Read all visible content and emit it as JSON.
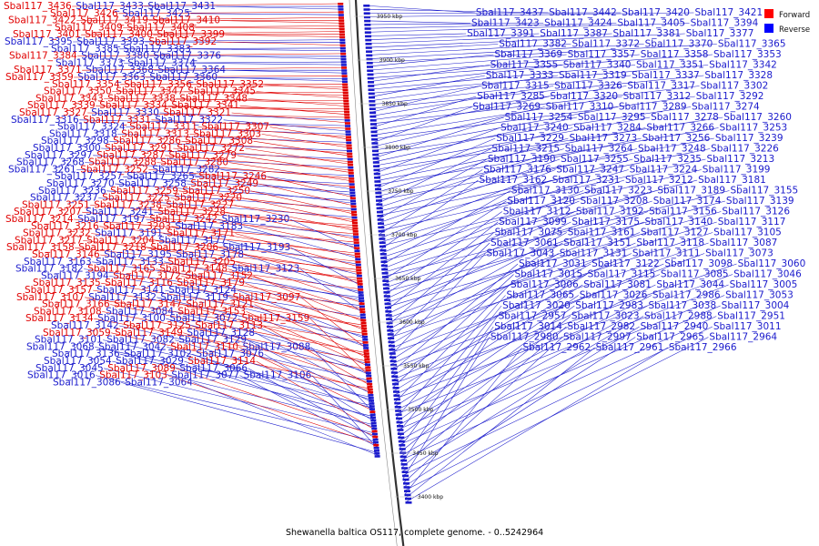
{
  "caption": "Shewanella baltica OS117, complete genome. - 0..5242964",
  "legend": {
    "items": [
      {
        "label": "Forward",
        "color": "#ff0000"
      },
      {
        "label": "Reverse",
        "color": "#0000ff"
      }
    ]
  },
  "colors": {
    "forward": "#e00000",
    "reverse": "#1a1acc",
    "backbone": "#333333"
  },
  "ticks": [
    "3950 kbp",
    "3900 kbp",
    "3850 kbp",
    "3800 kbp",
    "3750 kbp",
    "3700 kbp",
    "3650 kbp",
    "3600 kbp",
    "3550 kbp",
    "3500 kbp",
    "3450 kbp",
    "3400 kbp"
  ],
  "left_labels": [
    {
      "t": "Sbal117_3436",
      "s": "f"
    },
    {
      "t": "Sbal117_3433",
      "s": "r"
    },
    {
      "t": "Sbal117_3431",
      "s": "r"
    },
    {
      "t": "Sbal117_3426",
      "s": "f"
    },
    {
      "t": "Sbal117_3425",
      "s": "r"
    },
    {
      "t": "Sbal117_3422",
      "s": "f"
    },
    {
      "t": "Sbal117_3419",
      "s": "f"
    },
    {
      "t": "Sbal117_3410",
      "s": "f"
    },
    {
      "t": "Sbal117_3409",
      "s": "f"
    },
    {
      "t": "Sbal117_3408",
      "s": "f"
    },
    {
      "t": "Sbal117_3401",
      "s": "f"
    },
    {
      "t": "Sbal117_3400",
      "s": "f"
    },
    {
      "t": "Sbal117_3399",
      "s": "f"
    },
    {
      "t": "Sbal117_3395",
      "s": "r"
    },
    {
      "t": "Sbal117_3393",
      "s": "r"
    },
    {
      "t": "Sbal117_3392",
      "s": "f"
    },
    {
      "t": "Sbal117_3385",
      "s": "r"
    },
    {
      "t": "Sbal117_3383",
      "s": "r"
    },
    {
      "t": "Sbal117_3384",
      "s": "f"
    },
    {
      "t": "Sbal117_3380",
      "s": "r"
    },
    {
      "t": "Sbal117_3376",
      "s": "r"
    },
    {
      "t": "Sbal117_3373",
      "s": "r"
    },
    {
      "t": "Sbal117_3374",
      "s": "r"
    },
    {
      "t": "Sbal117_3371",
      "s": "f"
    },
    {
      "t": "Sbal117_3368",
      "s": "r"
    },
    {
      "t": "Sbal117_3364",
      "s": "r"
    },
    {
      "t": "Sbal117_3359",
      "s": "f"
    },
    {
      "t": "Sbal117_3363",
      "s": "r"
    },
    {
      "t": "Sbal117_3360",
      "s": "r"
    },
    {
      "t": "Sbal117_3354",
      "s": "f"
    },
    {
      "t": "Sbal117_3356",
      "s": "f"
    },
    {
      "t": "Sbal117_3352",
      "s": "f"
    },
    {
      "t": "Sbal117_3350",
      "s": "f"
    },
    {
      "t": "Sbal117_3347",
      "s": "f"
    },
    {
      "t": "Sbal117_3345",
      "s": "f"
    },
    {
      "t": "Sbal117_3343",
      "s": "f"
    },
    {
      "t": "Sbal117_3338",
      "s": "f"
    },
    {
      "t": "Sbal117_3348",
      "s": "f"
    },
    {
      "t": "Sbal117_3339",
      "s": "f"
    },
    {
      "t": "Sbal117_3334",
      "s": "f"
    },
    {
      "t": "Sbal117_3341",
      "s": "f"
    },
    {
      "t": "Sbal117_3327",
      "s": "f"
    },
    {
      "t": "Sbal117_3330",
      "s": "r"
    },
    {
      "t": "Sbal117_3321",
      "s": "f"
    },
    {
      "t": "Sbal117_3316",
      "s": "r"
    },
    {
      "t": "Sbal117_3331",
      "s": "f"
    },
    {
      "t": "Sbal117_3322",
      "s": "r"
    },
    {
      "t": "Sbal117_3324",
      "s": "r"
    },
    {
      "t": "Sbal117_3311",
      "s": "f"
    },
    {
      "t": "Sbal117_3307",
      "s": "f"
    },
    {
      "t": "Sbal117_3318",
      "s": "r"
    },
    {
      "t": "Sbal117_3313",
      "s": "f"
    },
    {
      "t": "Sbal117_3303",
      "s": "f"
    },
    {
      "t": "Sbal117_3298",
      "s": "r"
    },
    {
      "t": "Sbal117_3286",
      "s": "f"
    },
    {
      "t": "Sbal117_3308",
      "s": "f"
    },
    {
      "t": "Sbal117_3300",
      "s": "r"
    },
    {
      "t": "Sbal117_3291",
      "s": "f"
    },
    {
      "t": "Sbal117_3272",
      "s": "f"
    },
    {
      "t": "Sbal117_3297",
      "s": "r"
    },
    {
      "t": "Sbal117_3287",
      "s": "f"
    },
    {
      "t": "Sbal117_3279",
      "s": "f"
    },
    {
      "t": "Sbal117_3268",
      "s": "r"
    },
    {
      "t": "Sbal117_3288",
      "s": "f"
    },
    {
      "t": "Sbal117_3280",
      "s": "f"
    },
    {
      "t": "Sbal117_3261",
      "s": "r"
    },
    {
      "t": "Sbal117_3252",
      "s": "f"
    },
    {
      "t": "Sbal117_3282",
      "s": "r"
    },
    {
      "t": "Sbal117_3257",
      "s": "r"
    },
    {
      "t": "Sbal117_3265",
      "s": "r"
    },
    {
      "t": "Sbal117_3246",
      "s": "f"
    },
    {
      "t": "Sbal117_3270",
      "s": "r"
    },
    {
      "t": "Sbal117_3258",
      "s": "r"
    },
    {
      "t": "Sbal117_3249",
      "s": "f"
    },
    {
      "t": "Sbal117_3236",
      "s": "r"
    },
    {
      "t": "Sbal117_3259",
      "s": "f"
    },
    {
      "t": "Sbal117_3250",
      "s": "f"
    },
    {
      "t": "Sbal117_3237",
      "s": "r"
    },
    {
      "t": "Sbal117_3225",
      "s": "f"
    },
    {
      "t": "Sbal117_3220",
      "s": "f"
    },
    {
      "t": "Sbal117_3251",
      "s": "f"
    },
    {
      "t": "Sbal117_3238",
      "s": "f"
    },
    {
      "t": "Sbal117_3227",
      "s": "f"
    },
    {
      "t": "Sbal117_3207",
      "s": "f"
    },
    {
      "t": "Sbal117_3241",
      "s": "r"
    },
    {
      "t": "Sbal117_3228",
      "s": "f"
    },
    {
      "t": "Sbal117_3214",
      "s": "f"
    },
    {
      "t": "Sbal117_3197",
      "s": "r"
    },
    {
      "t": "Sbal117_3242",
      "s": "f"
    },
    {
      "t": "Sbal117_3230",
      "s": "r"
    },
    {
      "t": "Sbal117_3216",
      "s": "f"
    },
    {
      "t": "Sbal117_3203",
      "s": "f"
    },
    {
      "t": "Sbal117_3183",
      "s": "r"
    },
    {
      "t": "Sbal117_3232",
      "s": "f"
    },
    {
      "t": "Sbal117_3191",
      "s": "r"
    },
    {
      "t": "Sbal117_3171",
      "s": "f"
    },
    {
      "t": "Sbal117_3217",
      "s": "f"
    },
    {
      "t": "Sbal117_3204",
      "s": "f"
    },
    {
      "t": "Sbal117_3177",
      "s": "r"
    },
    {
      "t": "Sbal117_3158",
      "s": "f"
    },
    {
      "t": "Sbal117_3218",
      "s": "f"
    },
    {
      "t": "Sbal117_3206",
      "s": "f"
    },
    {
      "t": "Sbal117_3193",
      "s": "r"
    },
    {
      "t": "Sbal117_3146",
      "s": "f"
    },
    {
      "t": "Sbal117_3195",
      "s": "r"
    },
    {
      "t": "Sbal117_3178",
      "s": "r"
    },
    {
      "t": "Sbal117_3163",
      "s": "r"
    },
    {
      "t": "Sbal117_3133",
      "s": "r"
    },
    {
      "t": "Sbal117_3205",
      "s": "f"
    },
    {
      "t": "Sbal117_3182",
      "s": "r"
    },
    {
      "t": "Sbal117_3165",
      "s": "f"
    },
    {
      "t": "Sbal117_3148",
      "s": "f"
    },
    {
      "t": "Sbal117_3123",
      "s": "r"
    },
    {
      "t": "Sbal117_3194",
      "s": "r"
    },
    {
      "t": "Sbal117_3172",
      "s": "f"
    },
    {
      "t": "Sbal117_3152",
      "s": "f"
    },
    {
      "t": "Sbal117_3135",
      "s": "f"
    },
    {
      "t": "Sbal117_3116",
      "s": "f"
    },
    {
      "t": "Sbal117_3179",
      "s": "f"
    },
    {
      "t": "Sbal117_3157",
      "s": "f"
    },
    {
      "t": "Sbal117_3141",
      "s": "r"
    },
    {
      "t": "Sbal117_3124",
      "s": "r"
    },
    {
      "t": "Sbal117_3107",
      "s": "f"
    },
    {
      "t": "Sbal117_3132",
      "s": "r"
    },
    {
      "t": "Sbal117_3119",
      "s": "r"
    },
    {
      "t": "Sbal117_3097",
      "s": "f"
    },
    {
      "t": "Sbal117_3166",
      "s": "f"
    },
    {
      "t": "Sbal117_3147",
      "s": "f"
    },
    {
      "t": "Sbal117_3121",
      "s": "f"
    },
    {
      "t": "Sbal117_3108",
      "s": "f"
    },
    {
      "t": "Sbal117_3084",
      "s": "r"
    },
    {
      "t": "Sbal117_3153",
      "s": "f"
    },
    {
      "t": "Sbal117_3134",
      "s": "f"
    },
    {
      "t": "Sbal117_3100",
      "s": "r"
    },
    {
      "t": "Sbal117_3072",
      "s": "r"
    },
    {
      "t": "Sbal117_3159",
      "s": "f"
    },
    {
      "t": "Sbal117_3142",
      "s": "r"
    },
    {
      "t": "Sbal117_3125",
      "s": "f"
    },
    {
      "t": "Sbal117_3113",
      "s": "f"
    },
    {
      "t": "Sbal117_3059",
      "s": "f"
    },
    {
      "t": "Sbal117_3149",
      "s": "f"
    },
    {
      "t": "Sbal117_3128",
      "s": "r"
    },
    {
      "t": "Sbal117_3101",
      "s": "r"
    },
    {
      "t": "Sbal117_3082",
      "s": "r"
    },
    {
      "t": "Sbal117_3129",
      "s": "r"
    },
    {
      "t": "Sbal117_3068",
      "s": "r"
    },
    {
      "t": "Sbal117_3042",
      "s": "r"
    },
    {
      "t": "Sbal117_3110",
      "s": "f"
    },
    {
      "t": "Sbal117_3088",
      "s": "r"
    },
    {
      "t": "Sbal117_3136",
      "s": "r"
    },
    {
      "t": "Sbal117_3102",
      "s": "r"
    },
    {
      "t": "Sbal117_3076",
      "s": "r"
    },
    {
      "t": "Sbal117_3054",
      "s": "r"
    },
    {
      "t": "Sbal117_3029",
      "s": "r"
    },
    {
      "t": "Sbal117_3114",
      "s": "f"
    },
    {
      "t": "Sbal117_3045",
      "s": "r"
    },
    {
      "t": "Sbal117_3089",
      "s": "f"
    },
    {
      "t": "Sbal117_3066",
      "s": "r"
    },
    {
      "t": "Sbal117_3016",
      "s": "r"
    },
    {
      "t": "Sbal117_3103",
      "s": "f"
    },
    {
      "t": "Sbal117_3077",
      "s": "r"
    },
    {
      "t": "Sbal117_3106",
      "s": "r"
    },
    {
      "t": "Sbal117_3086",
      "s": "r"
    },
    {
      "t": "Sbal117_3064",
      "s": "r"
    }
  ],
  "right_labels": [
    {
      "t": "Sbal117_3437"
    },
    {
      "t": "Sbal117_3442"
    },
    {
      "t": "Sbal117_3420"
    },
    {
      "t": "Sbal117_3421"
    },
    {
      "t": "Sbal117_3423"
    },
    {
      "t": "Sbal117_3424"
    },
    {
      "t": "Sbal117_3405"
    },
    {
      "t": "Sbal117_3394"
    },
    {
      "t": "Sbal117_3391"
    },
    {
      "t": "Sbal117_3387"
    },
    {
      "t": "Sbal117_3381"
    },
    {
      "t": "Sbal117_3377"
    },
    {
      "t": "Sbal117_3382"
    },
    {
      "t": "Sbal117_3372"
    },
    {
      "t": "Sbal117_3370"
    },
    {
      "t": "Sbal117_3365"
    },
    {
      "t": "Sbal117_3369"
    },
    {
      "t": "Sbal117_3357"
    },
    {
      "t": "Sbal117_3358"
    },
    {
      "t": "Sbal117_3353"
    },
    {
      "t": "Sbal117_3355"
    },
    {
      "t": "Sbal117_3340"
    },
    {
      "t": "Sbal117_3351"
    },
    {
      "t": "Sbal117_3342"
    },
    {
      "t": "Sbal117_3333"
    },
    {
      "t": "Sbal117_3319"
    },
    {
      "t": "Sbal117_3337"
    },
    {
      "t": "Sbal117_3328"
    },
    {
      "t": "Sbal117_3315"
    },
    {
      "t": "Sbal117_3326"
    },
    {
      "t": "Sbal117_3317"
    },
    {
      "t": "Sbal117_3302"
    },
    {
      "t": "Sbal117_3285"
    },
    {
      "t": "Sbal117_3320"
    },
    {
      "t": "Sbal117_3312"
    },
    {
      "t": "Sbal117_3292"
    },
    {
      "t": "Sbal117_3269"
    },
    {
      "t": "Sbal117_3310"
    },
    {
      "t": "Sbal117_3289"
    },
    {
      "t": "Sbal117_3274"
    },
    {
      "t": "Sbal117_3254"
    },
    {
      "t": "Sbal117_3295"
    },
    {
      "t": "Sbal117_3278"
    },
    {
      "t": "Sbal117_3260"
    },
    {
      "t": "Sbal117_3240"
    },
    {
      "t": "Sbal117_3284"
    },
    {
      "t": "Sbal117_3266"
    },
    {
      "t": "Sbal117_3253"
    },
    {
      "t": "Sbal117_3229"
    },
    {
      "t": "Sbal117_3273"
    },
    {
      "t": "Sbal117_3256"
    },
    {
      "t": "Sbal117_3239"
    },
    {
      "t": "Sbal117_3215"
    },
    {
      "t": "Sbal117_3264"
    },
    {
      "t": "Sbal117_3248"
    },
    {
      "t": "Sbal117_3226"
    },
    {
      "t": "Sbal117_3190"
    },
    {
      "t": "Sbal117_3255"
    },
    {
      "t": "Sbal117_3235"
    },
    {
      "t": "Sbal117_3213"
    },
    {
      "t": "Sbal117_3176"
    },
    {
      "t": "Sbal117_3247"
    },
    {
      "t": "Sbal117_3224"
    },
    {
      "t": "Sbal117_3199"
    },
    {
      "t": "Sbal117_3162"
    },
    {
      "t": "Sbal117_3231"
    },
    {
      "t": "Sbal117_3212"
    },
    {
      "t": "Sbal117_3181"
    },
    {
      "t": "Sbal117_3130"
    },
    {
      "t": "Sbal117_3223"
    },
    {
      "t": "Sbal117_3189"
    },
    {
      "t": "Sbal117_3155"
    },
    {
      "t": "Sbal117_3120"
    },
    {
      "t": "Sbal117_3208"
    },
    {
      "t": "Sbal117_3174"
    },
    {
      "t": "Sbal117_3139"
    },
    {
      "t": "Sbal117_3112"
    },
    {
      "t": "Sbal117_3192"
    },
    {
      "t": "Sbal117_3156"
    },
    {
      "t": "Sbal117_3126"
    },
    {
      "t": "Sbal117_3099"
    },
    {
      "t": "Sbal117_3175"
    },
    {
      "t": "Sbal117_3140"
    },
    {
      "t": "Sbal117_3117"
    },
    {
      "t": "Sbal117_3075"
    },
    {
      "t": "Sbal117_3161"
    },
    {
      "t": "Sbal117_3127"
    },
    {
      "t": "Sbal117_3105"
    },
    {
      "t": "Sbal117_3061"
    },
    {
      "t": "Sbal117_3151"
    },
    {
      "t": "Sbal117_3118"
    },
    {
      "t": "Sbal117_3087"
    },
    {
      "t": "Sbal117_3043"
    },
    {
      "t": "Sbal117_3131"
    },
    {
      "t": "Sbal117_3111"
    },
    {
      "t": "Sbal117_3073"
    },
    {
      "t": "Sbal117_3031"
    },
    {
      "t": "Sbal117_3122"
    },
    {
      "t": "Sbal117_3098"
    },
    {
      "t": "Sbal117_3060"
    },
    {
      "t": "Sbal117_3015"
    },
    {
      "t": "Sbal117_3115"
    },
    {
      "t": "Sbal117_3085"
    },
    {
      "t": "Sbal117_3046"
    },
    {
      "t": "Sbal117_3006"
    },
    {
      "t": "Sbal117_3081"
    },
    {
      "t": "Sbal117_3044"
    },
    {
      "t": "Sbal117_3005"
    },
    {
      "t": "Sbal117_3065"
    },
    {
      "t": "Sbal117_3026"
    },
    {
      "t": "Sbal117_2986"
    },
    {
      "t": "Sbal117_3053"
    },
    {
      "t": "Sbal117_3020"
    },
    {
      "t": "Sbal117_2983"
    },
    {
      "t": "Sbal117_3038"
    },
    {
      "t": "Sbal117_3004"
    },
    {
      "t": "Sbal117_2957"
    },
    {
      "t": "Sbal117_3023"
    },
    {
      "t": "Sbal117_2988"
    },
    {
      "t": "Sbal117_2951"
    },
    {
      "t": "Sbal117_3014"
    },
    {
      "t": "Sbal117_2982"
    },
    {
      "t": "Sbal117_2940"
    },
    {
      "t": "Sbal117_3011"
    },
    {
      "t": "Sbal117_2980"
    },
    {
      "t": "Sbal117_2997"
    },
    {
      "t": "Sbal117_2965"
    },
    {
      "t": "Sbal117_2964"
    },
    {
      "t": "Sbal117_2962"
    },
    {
      "t": "Sbal117_2961"
    },
    {
      "t": "Sbal117_2966"
    }
  ]
}
